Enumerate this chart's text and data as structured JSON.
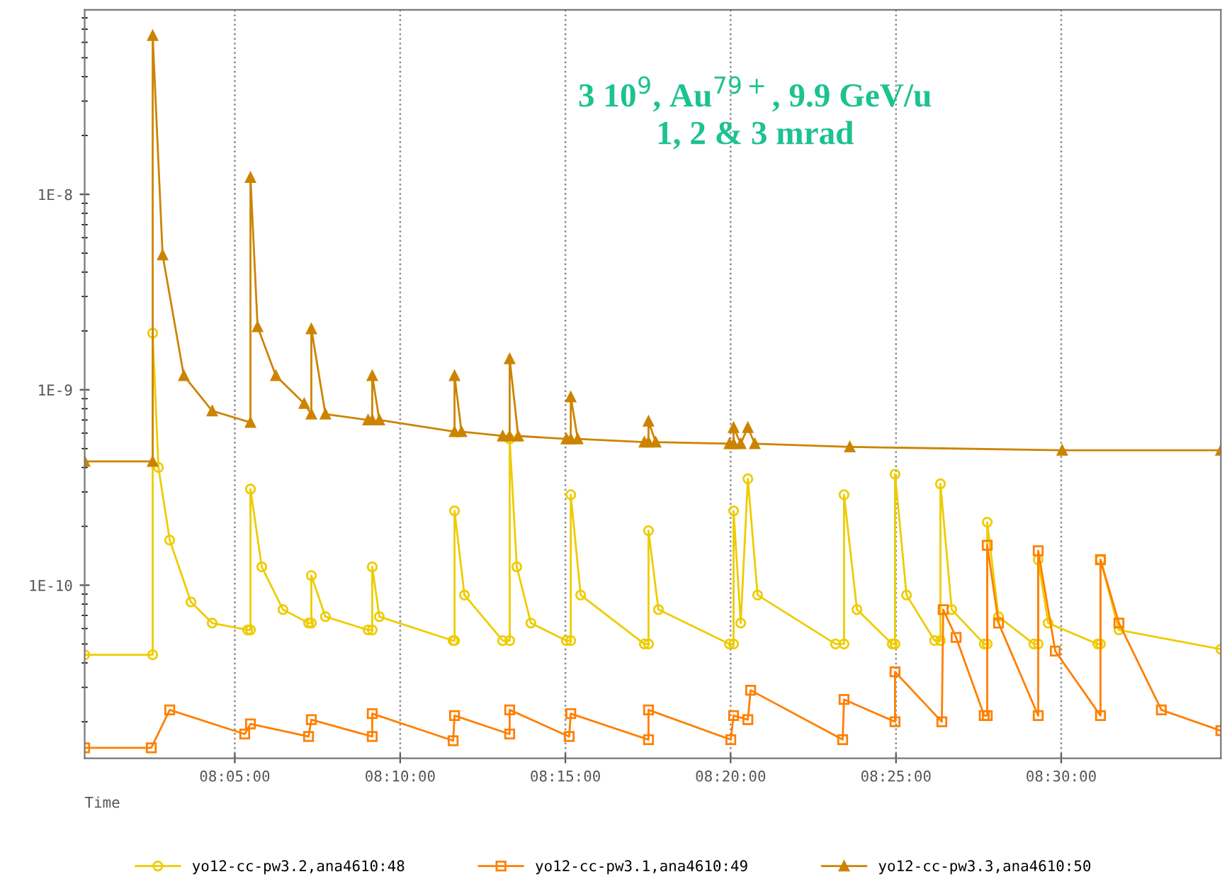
{
  "chart_data": {
    "type": "line",
    "xlabel": "Time",
    "log": "y",
    "grid": "x",
    "legend": "bottom",
    "line_style": "solid",
    "annotations": [
      "3 10$^{9}$, Au$^{79+}$, 9.9 GeV/u\n1, 2 & 3 mrad"
    ],
    "xlim": [
      8.0076,
      8.5805
    ],
    "ylim": [
      1.3e-11,
      8.8e-08
    ],
    "xticks": [
      {
        "value": 8.0833,
        "label": "08:05:00"
      },
      {
        "value": 8.1667,
        "label": "08:10:00"
      },
      {
        "value": 8.25,
        "label": "08:15:00"
      },
      {
        "value": 8.3333,
        "label": "08:20:00"
      },
      {
        "value": 8.4167,
        "label": "08:25:00"
      },
      {
        "value": 8.5,
        "label": "08:30:00"
      }
    ],
    "yticks": [
      {
        "value": 1e-10,
        "label": "1E-10"
      },
      {
        "value": 1e-09,
        "label": "1E-9"
      },
      {
        "value": 1e-08,
        "label": "1E-8"
      }
    ],
    "series": [
      {
        "name": "yo12-cc-pw3.2,ana4610:48",
        "color": "#eecc00",
        "marker": "circle",
        "x": [
          8.0076,
          8.0419,
          8.0419,
          8.0448,
          8.0505,
          8.0612,
          8.0719,
          8.0898,
          8.0912,
          8.0912,
          8.0969,
          8.1076,
          8.1205,
          8.1219,
          8.1219,
          8.129,
          8.1505,
          8.1526,
          8.1526,
          8.1562,
          8.1934,
          8.1941,
          8.1941,
          8.1991,
          8.2184,
          8.2219,
          8.2219,
          8.2255,
          8.2326,
          8.2505,
          8.2527,
          8.2527,
          8.2577,
          8.2898,
          8.2919,
          8.2919,
          8.2969,
          8.3327,
          8.3348,
          8.3348,
          8.3384,
          8.342,
          8.3469,
          8.3862,
          8.3905,
          8.3905,
          8.397,
          8.4148,
          8.4162,
          8.4162,
          8.422,
          8.4362,
          8.4391,
          8.4391,
          8.4448,
          8.4612,
          8.4627,
          8.4627,
          8.4684,
          8.4862,
          8.4884,
          8.4884,
          8.4934,
          8.5184,
          8.5198,
          8.5198,
          8.5291,
          8.5805
        ],
        "values": [
          4.4e-11,
          4.4e-11,
          1.95e-09,
          4e-10,
          1.7e-10,
          8.2e-11,
          6.4e-11,
          5.9e-11,
          5.9e-11,
          3.1e-10,
          1.24e-10,
          7.5e-11,
          6.4e-11,
          6.4e-11,
          1.12e-10,
          6.9e-11,
          5.9e-11,
          5.9e-11,
          1.24e-10,
          6.9e-11,
          5.2e-11,
          5.2e-11,
          2.4e-10,
          8.9e-11,
          5.2e-11,
          5.2e-11,
          5.6e-10,
          1.24e-10,
          6.4e-11,
          5.2e-11,
          5.2e-11,
          2.9e-10,
          8.9e-11,
          5e-11,
          5e-11,
          1.9e-10,
          7.5e-11,
          5e-11,
          5e-11,
          2.4e-10,
          6.4e-11,
          3.5e-10,
          8.9e-11,
          5e-11,
          5e-11,
          2.9e-10,
          7.5e-11,
          5e-11,
          5e-11,
          3.7e-10,
          8.9e-11,
          5.2e-11,
          5.2e-11,
          3.3e-10,
          7.5e-11,
          5e-11,
          5e-11,
          2.1e-10,
          6.9e-11,
          5e-11,
          5e-11,
          1.35e-10,
          6.4e-11,
          5e-11,
          5e-11,
          1.35e-10,
          5.9e-11,
          4.7e-11
        ]
      },
      {
        "name": "yo12-cc-pw3.1,ana4610:49",
        "color": "#ff7f00",
        "marker": "square",
        "x": [
          8.0076,
          8.0412,
          8.0505,
          8.0883,
          8.0912,
          8.1205,
          8.1219,
          8.1526,
          8.1526,
          8.1934,
          8.1941,
          8.2219,
          8.2219,
          8.2519,
          8.2527,
          8.2919,
          8.2919,
          8.3334,
          8.3348,
          8.342,
          8.3434,
          8.3898,
          8.3905,
          8.4162,
          8.4162,
          8.4398,
          8.4405,
          8.447,
          8.4612,
          8.4627,
          8.4627,
          8.4684,
          8.4884,
          8.4884,
          8.497,
          8.5198,
          8.5198,
          8.5291,
          8.5505,
          8.5805
        ],
        "values": [
          1.47e-11,
          1.47e-11,
          2.3e-11,
          1.73e-11,
          1.95e-11,
          1.68e-11,
          2.05e-11,
          1.68e-11,
          2.2e-11,
          1.6e-11,
          2.15e-11,
          1.73e-11,
          2.3e-11,
          1.68e-11,
          2.2e-11,
          1.62e-11,
          2.3e-11,
          1.62e-11,
          2.15e-11,
          2.05e-11,
          2.9e-11,
          1.62e-11,
          2.6e-11,
          2e-11,
          3.6e-11,
          2e-11,
          7.5e-11,
          5.4e-11,
          2.15e-11,
          2.15e-11,
          1.6e-10,
          6.4e-11,
          2.15e-11,
          1.5e-10,
          4.6e-11,
          2.15e-11,
          1.35e-10,
          6.4e-11,
          2.3e-11,
          1.8e-11
        ]
      },
      {
        "name": "yo12-cc-pw3.3,ana4610:50",
        "color": "#cc8400",
        "marker": "triangle",
        "x": [
          8.0076,
          8.0419,
          8.0419,
          8.0469,
          8.0576,
          8.0719,
          8.0912,
          8.0912,
          8.0948,
          8.104,
          8.1183,
          8.1219,
          8.1219,
          8.129,
          8.1505,
          8.1526,
          8.1526,
          8.1562,
          8.1941,
          8.1941,
          8.1976,
          8.2184,
          8.2219,
          8.2219,
          8.2262,
          8.2505,
          8.2527,
          8.2527,
          8.2562,
          8.2898,
          8.2919,
          8.2919,
          8.2955,
          8.3327,
          8.3348,
          8.3348,
          8.3384,
          8.342,
          8.3455,
          8.3934,
          8.5005,
          8.5805
        ],
        "values": [
          4.3e-10,
          4.3e-10,
          6.5e-08,
          4.9e-09,
          1.18e-09,
          7.8e-10,
          6.8e-10,
          1.22e-08,
          2.1e-09,
          1.18e-09,
          8.5e-10,
          7.5e-10,
          2.05e-09,
          7.5e-10,
          7e-10,
          7e-10,
          1.18e-09,
          7e-10,
          6.1e-10,
          1.18e-09,
          6.1e-10,
          5.8e-10,
          5.8e-10,
          1.44e-09,
          5.8e-10,
          5.6e-10,
          5.6e-10,
          9.2e-10,
          5.6e-10,
          5.4e-10,
          5.4e-10,
          6.9e-10,
          5.4e-10,
          5.3e-10,
          5.3e-10,
          6.4e-10,
          5.3e-10,
          6.4e-10,
          5.3e-10,
          5.1e-10,
          4.9e-10,
          4.9e-10
        ]
      }
    ]
  }
}
